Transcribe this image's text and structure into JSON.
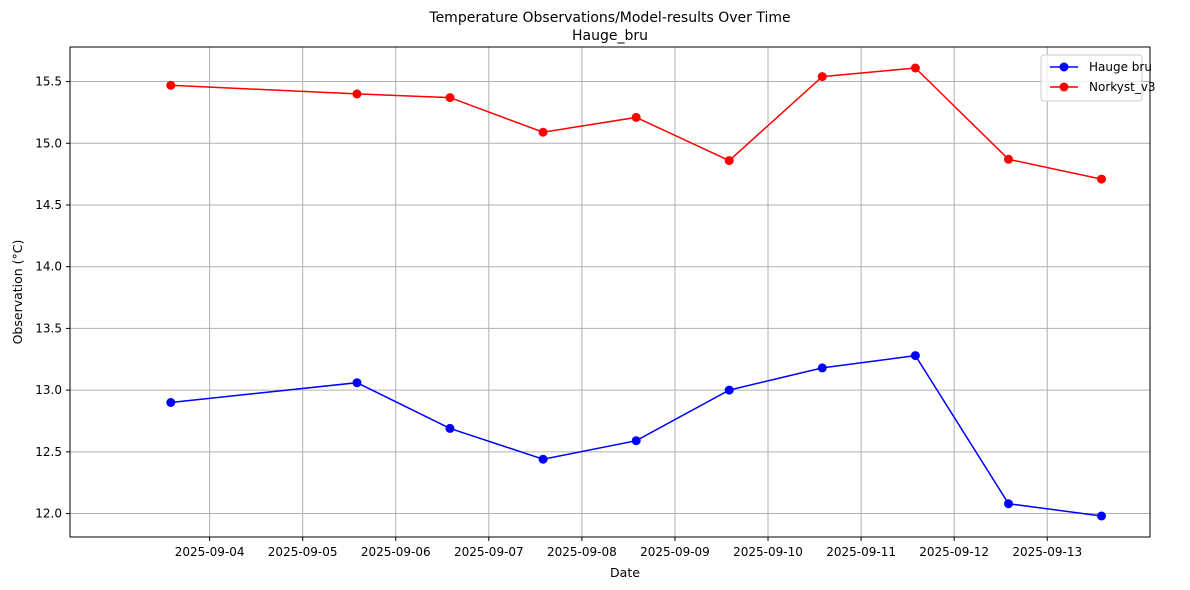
{
  "chart_data": {
    "type": "line",
    "title": "Temperature Observations/Model-results Over Time",
    "subtitle": "Hauge_bru",
    "xlabel": "Date",
    "ylabel": "Observation (°C)",
    "x_ticks": [
      "2025-09-04",
      "2025-09-05",
      "2025-09-06",
      "2025-09-07",
      "2025-09-08",
      "2025-09-09",
      "2025-09-10",
      "2025-09-11",
      "2025-09-12",
      "2025-09-13"
    ],
    "y_ticks": [
      12.0,
      12.5,
      13.0,
      13.5,
      14.0,
      14.5,
      15.0,
      15.5
    ],
    "y_tick_labels": [
      "12.0",
      "12.5",
      "13.0",
      "13.5",
      "14.0",
      "14.5",
      "15.0",
      "15.5"
    ],
    "xlim": [
      "2025-09-02 12:00",
      "2025-09-14 02:30"
    ],
    "ylim": [
      11.81,
      15.78
    ],
    "grid": true,
    "legend_position": "top-right",
    "x": [
      "2025-09-03 14:00",
      "2025-09-05 14:00",
      "2025-09-06 14:00",
      "2025-09-07 14:00",
      "2025-09-08 14:00",
      "2025-09-09 14:00",
      "2025-09-10 14:00",
      "2025-09-11 14:00",
      "2025-09-12 14:00",
      "2025-09-13 14:00"
    ],
    "series": [
      {
        "name": "Hauge bru",
        "color": "#0000ff",
        "values": [
          12.9,
          13.06,
          12.69,
          12.44,
          12.59,
          13.0,
          13.18,
          13.28,
          12.08,
          11.98
        ]
      },
      {
        "name": "Norkyst_v3",
        "color": "#ff0000",
        "values": [
          15.47,
          15.4,
          15.37,
          15.09,
          15.21,
          14.86,
          15.54,
          15.61,
          14.87,
          14.71
        ]
      }
    ]
  }
}
